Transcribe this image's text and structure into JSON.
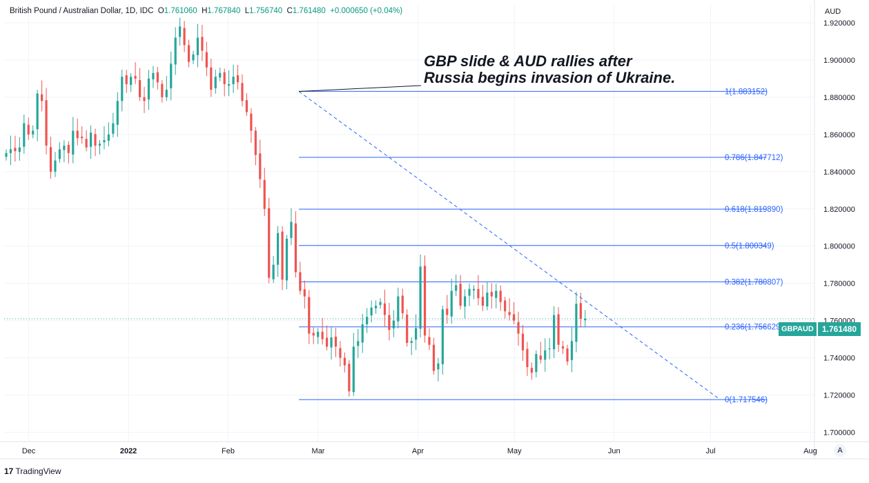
{
  "header": {
    "symbol": "British Pound / Australian Dollar, 1D, IDC",
    "open_label": "O",
    "open": "1.761060",
    "high_label": "H",
    "high": "1.767840",
    "low_label": "L",
    "low": "1.756740",
    "close_label": "C",
    "close": "1.761480",
    "change": "+0.000650 (+0.04%)"
  },
  "last_price": {
    "symbol": "GBPAUD",
    "value": "1.761480"
  },
  "footer": {
    "brand": "TradingView"
  },
  "auto_button": "A",
  "chart_data": {
    "type": "candlestick",
    "currency": "AUD",
    "ylim": [
      1.695,
      1.93
    ],
    "y_ticks": [
      1.7,
      1.72,
      1.74,
      1.76,
      1.78,
      1.8,
      1.82,
      1.84,
      1.86,
      1.88,
      1.9,
      1.92
    ],
    "x_ticks": [
      {
        "label": "Dec",
        "day": 7
      },
      {
        "label": "2022",
        "day": 38
      },
      {
        "label": "Feb",
        "day": 69
      },
      {
        "label": "Mar",
        "day": 97
      },
      {
        "label": "Apr",
        "day": 128
      },
      {
        "label": "May",
        "day": 158
      },
      {
        "label": "Jun",
        "day": 189
      },
      {
        "label": "Jul",
        "day": 219
      },
      {
        "label": "Aug",
        "day": 250
      }
    ],
    "annotation": {
      "text_line1": "GBP slide & AUD rallies after",
      "text_line2": "Russia begins invasion of Ukraine.",
      "anchor_day": 91,
      "anchor_price": 1.8831
    },
    "trendline": {
      "from_day": 91,
      "from_price": 1.8831,
      "to_day": 222,
      "to_price": 1.7175
    },
    "fibonacci": {
      "from_day": 91,
      "to_day": 222,
      "levels": [
        {
          "label": "1(1.883152)",
          "value": 1.883152
        },
        {
          "label": "0.786(1.847712)",
          "value": 1.847712
        },
        {
          "label": "0.618(1.819890)",
          "value": 1.81989
        },
        {
          "label": "0.5(1.800349)",
          "value": 1.800349
        },
        {
          "label": "0.382(1.780807)",
          "value": 1.780807
        },
        {
          "label": "0.236(1.756629)",
          "value": 1.756629
        },
        {
          "label": "0(1.717546)",
          "value": 1.717546
        }
      ]
    },
    "closes": [
      1.85,
      1.852,
      1.851,
      1.853,
      1.866,
      1.86,
      1.862,
      1.882,
      1.878,
      1.854,
      1.84,
      1.846,
      1.852,
      1.854,
      1.85,
      1.862,
      1.858,
      1.858,
      1.853,
      1.861,
      1.854,
      1.855,
      1.857,
      1.86,
      1.866,
      1.878,
      1.891,
      1.887,
      1.891,
      1.89,
      1.88,
      1.878,
      1.89,
      1.893,
      1.888,
      1.88,
      1.884,
      1.898,
      1.912,
      1.918,
      1.908,
      1.899,
      1.903,
      1.912,
      1.905,
      1.896,
      1.884,
      1.891,
      1.893,
      1.887,
      1.887,
      1.891,
      1.888,
      1.878,
      1.872,
      1.862,
      1.849,
      1.836,
      1.82,
      1.783,
      1.79,
      1.807,
      1.782,
      1.804,
      1.813,
      1.786,
      1.776,
      1.773,
      1.753,
      1.752,
      1.754,
      1.75,
      1.746,
      1.751,
      1.746,
      1.74,
      1.736,
      1.722,
      1.746,
      1.749,
      1.758,
      1.762,
      1.767,
      1.768,
      1.77,
      1.763,
      1.755,
      1.76,
      1.773,
      1.764,
      1.748,
      1.749,
      1.756,
      1.789,
      1.752,
      1.747,
      1.733,
      1.737,
      1.766,
      1.763,
      1.776,
      1.779,
      1.768,
      1.773,
      1.777,
      1.777,
      1.772,
      1.768,
      1.775,
      1.773,
      1.776,
      1.77,
      1.765,
      1.763,
      1.76,
      1.753,
      1.744,
      1.735,
      1.732,
      1.742,
      1.739,
      1.744,
      1.745,
      1.763,
      1.747,
      1.745,
      1.738,
      1.749,
      1.769,
      1.761,
      1.761
    ],
    "ohlc_note": "Daily candles, approx. Dec 2021 - Jun 2022; last candle O1.761060 H1.767840 L1.756740 C1.761480"
  }
}
